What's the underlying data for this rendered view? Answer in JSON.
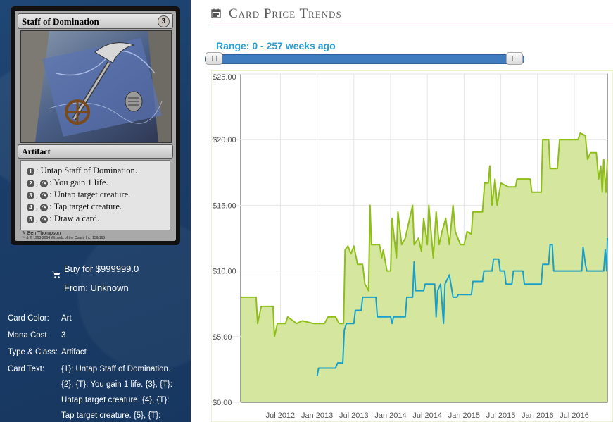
{
  "card": {
    "name": "Staff of Domination",
    "mana_cost_symbol": "3",
    "type_line": "Artifact",
    "rules": [
      {
        "cost": "1",
        "tap": false,
        "text": ": Untap Staff of Domination."
      },
      {
        "cost": "2",
        "tap": true,
        "text": ": You gain 1 life."
      },
      {
        "cost": "3",
        "tap": true,
        "text": ": Untap target creature."
      },
      {
        "cost": "4",
        "tap": true,
        "text": ": Tap target creature."
      },
      {
        "cost": "5",
        "tap": true,
        "text": ": Draw a card."
      }
    ],
    "artist": "Ben Thompson",
    "copyright": "™ & © 1993-2004 Wizards of the Coast, Inc. 136/165"
  },
  "buy": {
    "label": "Buy for $999999.0",
    "from": "From: Unknown"
  },
  "details": [
    {
      "key": "Card Color:",
      "value": "Art"
    },
    {
      "key": "Mana Cost",
      "value": "3"
    },
    {
      "key": "Type & Class:",
      "value": "Artifact"
    },
    {
      "key": "Card Text:",
      "value": "{1}: Untap Staff of Domination."
    }
  ],
  "card_text_continued": [
    "{2}, {T}: You gain 1 life. {3}, {T}:",
    "Untap target creature. {4}, {T}:",
    "Tap target creature. {5}, {T}:"
  ],
  "section_title": "Card Price Trends",
  "range_label": "Range: 0 - 257 weeks ago",
  "colors": {
    "area_fill": "#d5e79e",
    "green_line": "#8fbe1a",
    "blue_line": "#1aa0c8",
    "range_text": "#2a9fd6",
    "panel_bg": "#1f4775"
  },
  "chart_data": {
    "type": "line",
    "ylim": [
      0,
      25
    ],
    "y_ticks": [
      "$0.00",
      "$5.00",
      "$10.00",
      "$15.00",
      "$20.00",
      "$25.00"
    ],
    "y_tick_values": [
      0,
      5,
      10,
      15,
      20,
      25
    ],
    "x_ticks": [
      "Jul 2012",
      "Jan 2013",
      "Jul 2013",
      "Jan 2014",
      "Jul 2014",
      "Jan 2015",
      "Jul 2015",
      "Jan 2016",
      "Jul 2016"
    ],
    "x_tick_values": [
      2012.5,
      2013.0,
      2013.5,
      2014.0,
      2014.5,
      2015.0,
      2015.5,
      2016.0,
      2016.5
    ],
    "xlim": [
      2011.96,
      2016.95
    ],
    "series": [
      {
        "color": "green",
        "area": true,
        "points": [
          [
            2011.96,
            8.0
          ],
          [
            2012.17,
            8.0
          ],
          [
            2012.19,
            6.0
          ],
          [
            2012.24,
            7.3
          ],
          [
            2012.4,
            7.3
          ],
          [
            2012.42,
            5.0
          ],
          [
            2012.46,
            6.0
          ],
          [
            2012.57,
            6.0
          ],
          [
            2012.6,
            6.5
          ],
          [
            2012.72,
            6.0
          ],
          [
            2012.8,
            6.2
          ],
          [
            2012.95,
            6.0
          ],
          [
            2013.1,
            6.0
          ],
          [
            2013.15,
            6.5
          ],
          [
            2013.25,
            6.5
          ],
          [
            2013.3,
            6.0
          ],
          [
            2013.36,
            6.0
          ],
          [
            2013.38,
            11.6
          ],
          [
            2013.42,
            11.9
          ],
          [
            2013.46,
            11.3
          ],
          [
            2013.5,
            11.9
          ],
          [
            2013.55,
            10.5
          ],
          [
            2013.62,
            10.5
          ],
          [
            2013.65,
            9.0
          ],
          [
            2013.7,
            8.5
          ],
          [
            2013.72,
            15.0
          ],
          [
            2013.74,
            12.0
          ],
          [
            2013.85,
            12.0
          ],
          [
            2013.88,
            11.0
          ],
          [
            2013.9,
            11.6
          ],
          [
            2013.95,
            10.0
          ],
          [
            2014.0,
            10.0
          ],
          [
            2014.02,
            14.0
          ],
          [
            2014.08,
            11.0
          ],
          [
            2014.1,
            14.5
          ],
          [
            2014.15,
            12.0
          ],
          [
            2014.2,
            12.5
          ],
          [
            2014.3,
            15.0
          ],
          [
            2014.32,
            12.0
          ],
          [
            2014.38,
            12.5
          ],
          [
            2014.42,
            11.5
          ],
          [
            2014.45,
            14.0
          ],
          [
            2014.5,
            12.0
          ],
          [
            2014.52,
            15.0
          ],
          [
            2014.58,
            11.0
          ],
          [
            2014.62,
            14.5
          ],
          [
            2014.66,
            12.0
          ],
          [
            2014.7,
            13.0
          ],
          [
            2014.75,
            14.0
          ],
          [
            2014.8,
            12.0
          ],
          [
            2014.85,
            15.0
          ],
          [
            2014.88,
            13.0
          ],
          [
            2014.95,
            12.0
          ],
          [
            2015.0,
            12.0
          ],
          [
            2015.04,
            13.0
          ],
          [
            2015.1,
            12.8
          ],
          [
            2015.12,
            14.5
          ],
          [
            2015.25,
            14.5
          ],
          [
            2015.28,
            16.7
          ],
          [
            2015.33,
            16.7
          ],
          [
            2015.35,
            18.0
          ],
          [
            2015.38,
            15.0
          ],
          [
            2015.42,
            17.0
          ],
          [
            2015.45,
            15.0
          ],
          [
            2015.5,
            16.7
          ],
          [
            2015.6,
            16.4
          ],
          [
            2015.7,
            16.4
          ],
          [
            2015.72,
            17.0
          ],
          [
            2015.9,
            17.0
          ],
          [
            2015.92,
            16.0
          ],
          [
            2016.05,
            16.0
          ],
          [
            2016.07,
            20.0
          ],
          [
            2016.15,
            20.0
          ],
          [
            2016.17,
            17.8
          ],
          [
            2016.27,
            17.8
          ],
          [
            2016.3,
            20.0
          ],
          [
            2016.55,
            20.0
          ],
          [
            2016.58,
            20.5
          ],
          [
            2016.65,
            20.3
          ],
          [
            2016.68,
            18.5
          ],
          [
            2016.72,
            19.0
          ],
          [
            2016.8,
            19.0
          ],
          [
            2016.83,
            17.0
          ],
          [
            2016.86,
            18.0
          ],
          [
            2016.88,
            16.0
          ],
          [
            2016.9,
            18.5
          ],
          [
            2016.93,
            16.0
          ],
          [
            2016.95,
            18.5
          ]
        ]
      },
      {
        "color": "blue",
        "area": false,
        "points": [
          [
            2013.0,
            2.0
          ],
          [
            2013.02,
            2.6
          ],
          [
            2013.25,
            2.6
          ],
          [
            2013.28,
            3.0
          ],
          [
            2013.35,
            3.0
          ],
          [
            2013.37,
            5.5
          ],
          [
            2013.4,
            6.0
          ],
          [
            2013.5,
            6.0
          ],
          [
            2013.52,
            7.0
          ],
          [
            2013.6,
            7.0
          ],
          [
            2013.62,
            8.0
          ],
          [
            2013.8,
            8.0
          ],
          [
            2013.82,
            6.5
          ],
          [
            2014.0,
            6.5
          ],
          [
            2014.02,
            6.0
          ],
          [
            2014.04,
            6.5
          ],
          [
            2014.2,
            6.5
          ],
          [
            2014.22,
            8.0
          ],
          [
            2014.3,
            8.0
          ],
          [
            2014.32,
            10.7
          ],
          [
            2014.34,
            8.5
          ],
          [
            2014.45,
            8.5
          ],
          [
            2014.47,
            9.0
          ],
          [
            2014.6,
            9.0
          ],
          [
            2014.62,
            6.5
          ],
          [
            2014.64,
            8.5
          ],
          [
            2014.68,
            9.0
          ],
          [
            2014.72,
            6.0
          ],
          [
            2014.74,
            9.0
          ],
          [
            2014.8,
            9.7
          ],
          [
            2014.85,
            8.0
          ],
          [
            2014.9,
            8.0
          ],
          [
            2014.92,
            8.2
          ],
          [
            2015.1,
            8.2
          ],
          [
            2015.12,
            9.2
          ],
          [
            2015.25,
            9.2
          ],
          [
            2015.27,
            10.0
          ],
          [
            2015.38,
            10.0
          ],
          [
            2015.4,
            10.9
          ],
          [
            2015.47,
            10.9
          ],
          [
            2015.49,
            10.0
          ],
          [
            2015.55,
            10.0
          ],
          [
            2015.57,
            9.0
          ],
          [
            2015.65,
            9.0
          ],
          [
            2015.67,
            10.0
          ],
          [
            2015.8,
            10.0
          ],
          [
            2015.82,
            9.0
          ],
          [
            2016.05,
            9.0
          ],
          [
            2016.07,
            10.5
          ],
          [
            2016.15,
            10.5
          ],
          [
            2016.17,
            12.0
          ],
          [
            2016.2,
            12.0
          ],
          [
            2016.22,
            10.0
          ],
          [
            2016.6,
            10.0
          ],
          [
            2016.62,
            11.8
          ],
          [
            2016.65,
            10.5
          ],
          [
            2016.67,
            10.0
          ],
          [
            2016.9,
            10.0
          ],
          [
            2016.92,
            11.6
          ],
          [
            2016.94,
            10.0
          ],
          [
            2016.95,
            12.5
          ]
        ]
      }
    ]
  }
}
